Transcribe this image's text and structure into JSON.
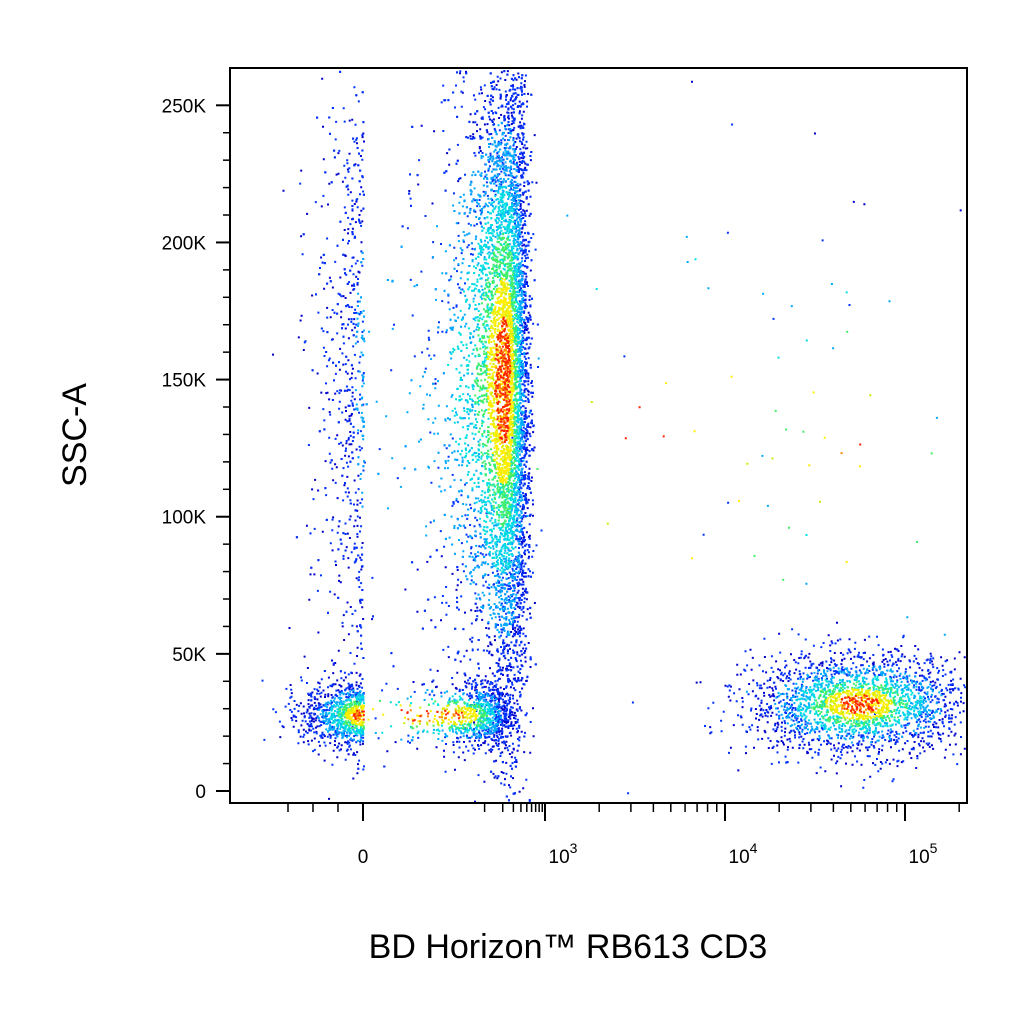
{
  "chart_data": {
    "type": "scatter",
    "style": "flow-cytometry pseudocolor density dot plot",
    "xlabel": "BD Horizon™ RB613 CD3",
    "ylabel": "SSC-A",
    "x_scale": "biexponential",
    "x_tick_labels": [
      {
        "value": 0,
        "base": "0",
        "exp": ""
      },
      {
        "value": 1000,
        "base": "10",
        "exp": "3"
      },
      {
        "value": 10000,
        "base": "10",
        "exp": "4"
      },
      {
        "value": 100000,
        "base": "10",
        "exp": "5"
      }
    ],
    "y_tick_labels": [
      {
        "value": 0,
        "label": "0"
      },
      {
        "value": 50000,
        "label": "50K"
      },
      {
        "value": 100000,
        "label": "100K"
      },
      {
        "value": 150000,
        "label": "150K"
      },
      {
        "value": 200000,
        "label": "200K"
      },
      {
        "value": 250000,
        "label": "250K"
      }
    ],
    "ylim": [
      0,
      262144
    ],
    "grid": false,
    "density_colors": [
      "#0000cc",
      "#0033ff",
      "#00aaff",
      "#00e0e0",
      "#44ee66",
      "#c8ee00",
      "#ffee00",
      "#ff8800",
      "#ff2200"
    ],
    "populations": [
      {
        "name": "",
        "x_center": 200,
        "x_spread": 150,
        "y_center": 150000,
        "y_spread": 60000,
        "count": 11000
      },
      {
        "name": "",
        "x_center": 0,
        "x_spread": 120,
        "y_center": 28000,
        "y_spread": 6000,
        "count": 1800
      },
      {
        "name": "",
        "x_center": 55000,
        "x_spread": 0.3,
        "y_center": 32000,
        "y_spread": 9000,
        "count": 2400
      },
      {
        "name": "",
        "x_center": 50000,
        "x_spread": 0.5,
        "y_center": 120000,
        "y_spread": 60000,
        "count": 40
      },
      {
        "name": "",
        "x_center": 5000,
        "x_spread": 1.0,
        "y_center": 120000,
        "y_spread": 70000,
        "count": 60
      }
    ]
  }
}
